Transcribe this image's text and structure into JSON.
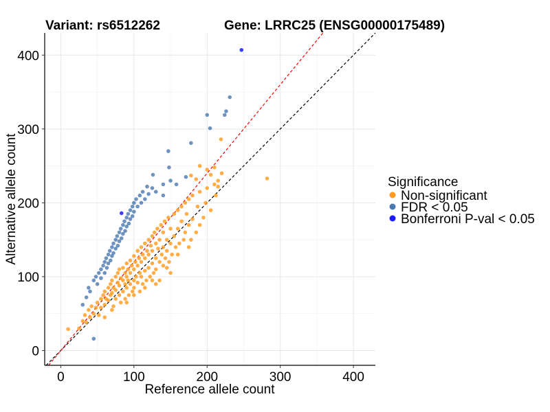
{
  "chart_data": {
    "type": "scatter",
    "title_left": "Variant: rs6512262",
    "title_right": "Gene: LRRC25 (ENSG00000175489)",
    "xlabel": "Reference allele count",
    "ylabel": "Alternative allele count",
    "xlim": [
      -22,
      430
    ],
    "ylim": [
      -20,
      430
    ],
    "xticks": [
      0,
      100,
      200,
      300,
      400
    ],
    "yticks": [
      0,
      100,
      200,
      300,
      400
    ],
    "xtick_labels": [
      "0",
      "100",
      "200",
      "300",
      "400"
    ],
    "ytick_labels": [
      "0",
      "100",
      "200",
      "300",
      "400"
    ],
    "grid": true,
    "reference_lines": [
      {
        "name": "identity",
        "slope": 1.0,
        "intercept": 0,
        "color": "#000000",
        "style": "dashed"
      },
      {
        "name": "fitted-ratio",
        "slope": 1.2,
        "intercept": 0,
        "color": "#FF0000",
        "style": "dashed"
      }
    ],
    "legend": {
      "title": "Significance",
      "placement": "right",
      "entries": [
        "Non-significant",
        "FDR < 0.05",
        "Bonferroni P-val < 0.05"
      ]
    },
    "series": [
      {
        "name": "Non-significant",
        "color": "#FF9A1A",
        "points": [
          [
            25,
            30
          ],
          [
            30,
            40
          ],
          [
            33,
            48
          ],
          [
            35,
            38
          ],
          [
            38,
            55
          ],
          [
            40,
            45
          ],
          [
            42,
            60
          ],
          [
            45,
            50
          ],
          [
            48,
            58
          ],
          [
            50,
            65
          ],
          [
            52,
            48
          ],
          [
            55,
            70
          ],
          [
            55,
            58
          ],
          [
            58,
            75
          ],
          [
            60,
            62
          ],
          [
            60,
            80
          ],
          [
            62,
            70
          ],
          [
            65,
            85
          ],
          [
            65,
            68
          ],
          [
            68,
            90
          ],
          [
            68,
            75
          ],
          [
            70,
            78
          ],
          [
            70,
            95
          ],
          [
            72,
            85
          ],
          [
            72,
            60
          ],
          [
            75,
            100
          ],
          [
            75,
            82
          ],
          [
            75,
            70
          ],
          [
            78,
            92
          ],
          [
            78,
            105
          ],
          [
            80,
            88
          ],
          [
            80,
            75
          ],
          [
            80,
            110
          ],
          [
            82,
            98
          ],
          [
            82,
            65
          ],
          [
            85,
            95
          ],
          [
            85,
            112
          ],
          [
            85,
            80
          ],
          [
            88,
            105
          ],
          [
            88,
            90
          ],
          [
            88,
            70
          ],
          [
            90,
            118
          ],
          [
            90,
            100
          ],
          [
            90,
            85
          ],
          [
            92,
            110
          ],
          [
            92,
            95
          ],
          [
            93,
            75
          ],
          [
            95,
            122
          ],
          [
            95,
            105
          ],
          [
            95,
            90
          ],
          [
            97,
            115
          ],
          [
            98,
            80
          ],
          [
            100,
            128
          ],
          [
            100,
            110
          ],
          [
            100,
            95
          ],
          [
            100,
            85
          ],
          [
            102,
            120
          ],
          [
            103,
            100
          ],
          [
            105,
            135
          ],
          [
            105,
            115
          ],
          [
            105,
            92
          ],
          [
            107,
            125
          ],
          [
            108,
            105
          ],
          [
            108,
            80
          ],
          [
            110,
            140
          ],
          [
            110,
            120
          ],
          [
            110,
            100
          ],
          [
            112,
            130
          ],
          [
            112,
            90
          ],
          [
            115,
            145
          ],
          [
            115,
            125
          ],
          [
            115,
            108
          ],
          [
            117,
            95
          ],
          [
            118,
            135
          ],
          [
            120,
            150
          ],
          [
            120,
            130
          ],
          [
            120,
            112
          ],
          [
            122,
            100
          ],
          [
            123,
            142
          ],
          [
            125,
            155
          ],
          [
            125,
            135
          ],
          [
            125,
            118
          ],
          [
            127,
            105
          ],
          [
            128,
            160
          ],
          [
            130,
            145
          ],
          [
            130,
            125
          ],
          [
            130,
            110
          ],
          [
            132,
            165
          ],
          [
            133,
            138
          ],
          [
            135,
            150
          ],
          [
            135,
            120
          ],
          [
            137,
            170
          ],
          [
            138,
            130
          ],
          [
            140,
            160
          ],
          [
            140,
            140
          ],
          [
            140,
            115
          ],
          [
            142,
            175
          ],
          [
            143,
            125
          ],
          [
            145,
            150
          ],
          [
            145,
            135
          ],
          [
            147,
            180
          ],
          [
            148,
            120
          ],
          [
            150,
            165
          ],
          [
            150,
            145
          ],
          [
            152,
            130
          ],
          [
            155,
            185
          ],
          [
            155,
            155
          ],
          [
            157,
            140
          ],
          [
            160,
            190
          ],
          [
            160,
            165
          ],
          [
            162,
            145
          ],
          [
            165,
            175
          ],
          [
            165,
            195
          ],
          [
            168,
            150
          ],
          [
            170,
            200
          ],
          [
            170,
            160
          ],
          [
            172,
            185
          ],
          [
            175,
            205
          ],
          [
            175,
            170
          ],
          [
            178,
            150
          ],
          [
            180,
            210
          ],
          [
            180,
            178
          ],
          [
            185,
            160
          ],
          [
            187,
            195
          ],
          [
            190,
            215
          ],
          [
            190,
            170
          ],
          [
            195,
            180
          ],
          [
            198,
            200
          ],
          [
            200,
            220
          ],
          [
            205,
            190
          ],
          [
            210,
            225
          ],
          [
            212,
            210
          ],
          [
            215,
            230
          ],
          [
            220,
            240
          ],
          [
            219,
            286
          ],
          [
            282,
            233
          ],
          [
            10,
            29
          ],
          [
            135,
            95
          ],
          [
            115,
            85
          ],
          [
            125,
            95
          ],
          [
            145,
            112
          ],
          [
            160,
            130
          ],
          [
            175,
            140
          ],
          [
            100,
            75
          ],
          [
            90,
            65
          ],
          [
            70,
            55
          ],
          [
            60,
            45
          ],
          [
            150,
            105
          ],
          [
            130,
            90
          ],
          [
            190,
            250
          ],
          [
            200,
            245
          ],
          [
            210,
            248
          ],
          [
            205,
            238
          ],
          [
            178,
            237
          ],
          [
            185,
            232
          ],
          [
            215,
            222
          ]
        ]
      },
      {
        "name": "FDR < 0.05",
        "color": "#4A78B0",
        "points": [
          [
            45,
            16
          ],
          [
            30,
            62
          ],
          [
            35,
            72
          ],
          [
            38,
            85
          ],
          [
            40,
            80
          ],
          [
            45,
            95
          ],
          [
            48,
            100
          ],
          [
            50,
            90
          ],
          [
            52,
            105
          ],
          [
            55,
            110
          ],
          [
            55,
            98
          ],
          [
            58,
            115
          ],
          [
            60,
            105
          ],
          [
            60,
            120
          ],
          [
            62,
            125
          ],
          [
            63,
            112
          ],
          [
            65,
            130
          ],
          [
            65,
            118
          ],
          [
            67,
            135
          ],
          [
            68,
            122
          ],
          [
            70,
            140
          ],
          [
            70,
            128
          ],
          [
            72,
            145
          ],
          [
            72,
            132
          ],
          [
            75,
            150
          ],
          [
            75,
            138
          ],
          [
            77,
            155
          ],
          [
            78,
            142
          ],
          [
            80,
            160
          ],
          [
            80,
            148
          ],
          [
            82,
            165
          ],
          [
            83,
            152
          ],
          [
            85,
            170
          ],
          [
            85,
            158
          ],
          [
            87,
            175
          ],
          [
            88,
            162
          ],
          [
            90,
            180
          ],
          [
            90,
            168
          ],
          [
            92,
            185
          ],
          [
            93,
            172
          ],
          [
            95,
            190
          ],
          [
            95,
            178
          ],
          [
            98,
            195
          ],
          [
            98,
            182
          ],
          [
            100,
            200
          ],
          [
            100,
            188
          ],
          [
            103,
            205
          ],
          [
            105,
            195
          ],
          [
            108,
            210
          ],
          [
            110,
            200
          ],
          [
            112,
            215
          ],
          [
            115,
            205
          ],
          [
            118,
            222
          ],
          [
            120,
            212
          ],
          [
            125,
            220
          ],
          [
            130,
            215
          ],
          [
            140,
            225
          ],
          [
            126,
            238
          ],
          [
            148,
            248
          ],
          [
            147,
            270
          ],
          [
            171,
            235
          ],
          [
            178,
            281
          ],
          [
            200,
            319
          ],
          [
            204,
            301
          ],
          [
            224,
            319
          ],
          [
            226,
            324
          ],
          [
            231,
            343
          ],
          [
            140,
            210
          ],
          [
            150,
            230
          ],
          [
            158,
            225
          ]
        ]
      },
      {
        "name": "Bonferroni P-val < 0.05",
        "color": "#1A1AFF",
        "points": [
          [
            247,
            407
          ],
          [
            83,
            186
          ]
        ]
      }
    ]
  }
}
